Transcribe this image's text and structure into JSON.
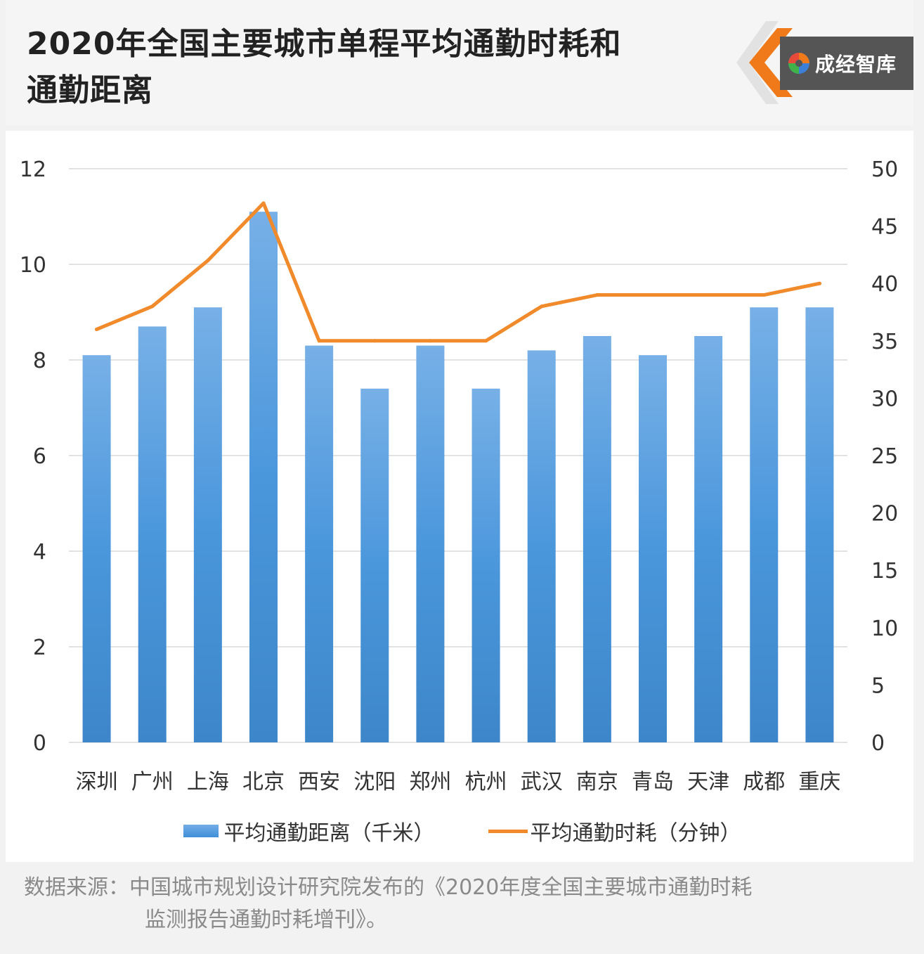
{
  "header": {
    "title_line1": "2020年全国主要城市单程平均通勤时耗和",
    "title_line2": "通勤距离",
    "logo_text": "成经智库",
    "logo_icon": "swirl-logo-icon",
    "accent_color": "#f07a1a"
  },
  "legend": {
    "bar_label": "平均通勤距离（千米）",
    "line_label": "平均通勤时耗（分钟）"
  },
  "source": {
    "line1": "数据来源：中国城市规划设计研究院发布的《2020年度全国主要城市通勤时耗",
    "line2": "监测报告通勤时耗增刊》。"
  },
  "chart_data": {
    "type": "bar+line",
    "categories": [
      "深圳",
      "广州",
      "上海",
      "北京",
      "西安",
      "沈阳",
      "郑州",
      "杭州",
      "武汉",
      "南京",
      "青岛",
      "天津",
      "成都",
      "重庆"
    ],
    "series": [
      {
        "name": "平均通勤距离（千米）",
        "type": "bar",
        "axis": "left",
        "color": "#4a95db",
        "values": [
          8.1,
          8.7,
          9.1,
          11.1,
          8.3,
          7.4,
          8.3,
          7.4,
          8.2,
          8.5,
          8.1,
          8.5,
          9.1,
          9.1
        ]
      },
      {
        "name": "平均通勤时耗（分钟）",
        "type": "line",
        "axis": "right",
        "color": "#f08a2a",
        "values": [
          36,
          38,
          42,
          47,
          35,
          35,
          35,
          35,
          38,
          39,
          39,
          39,
          39,
          40
        ]
      }
    ],
    "y_left": {
      "min": 0,
      "max": 12,
      "ticks": [
        0,
        2,
        4,
        6,
        8,
        10,
        12
      ]
    },
    "y_right": {
      "min": 0,
      "max": 50,
      "ticks": [
        0,
        5,
        10,
        15,
        20,
        25,
        30,
        35,
        40,
        45,
        50
      ]
    },
    "grid": true,
    "legend_position": "bottom"
  }
}
